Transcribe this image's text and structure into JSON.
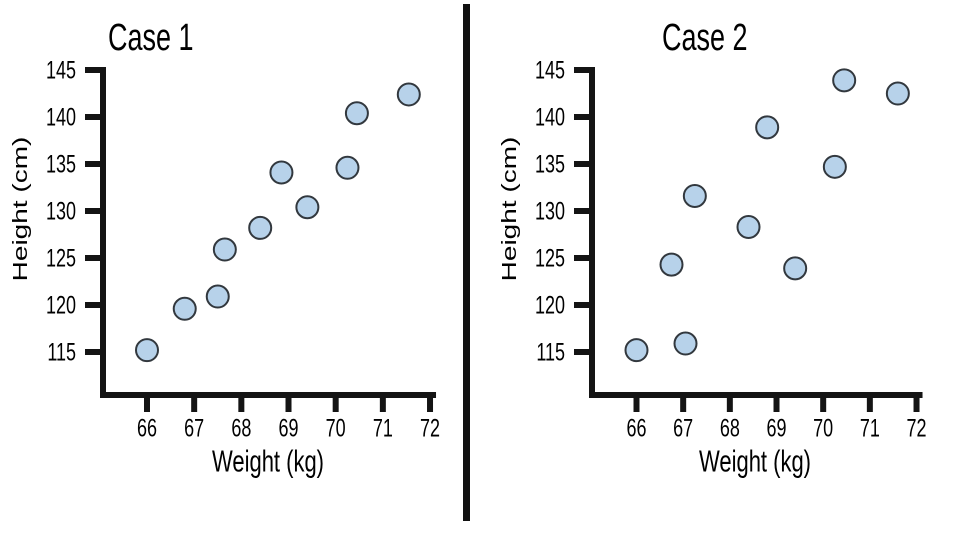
{
  "figure": {
    "background": "#ffffff",
    "description": "Two side-by-side scatter plots of Height vs Weight, separated by a vertical divider"
  },
  "style": {
    "marker_fill": "#b7d2ea",
    "marker_stroke": "#32383e",
    "axis_color": "#141414",
    "divider_color": "#111111",
    "text_color": "#000000"
  },
  "chart_data": [
    {
      "type": "scatter",
      "title": "Case 1",
      "xlabel": "Weight (kg)",
      "ylabel": "Height (cm)",
      "xticks": [
        66,
        67,
        68,
        69,
        70,
        71,
        72
      ],
      "yticks": [
        115,
        120,
        125,
        130,
        135,
        140,
        145
      ],
      "xlim": [
        65.0,
        72.1
      ],
      "ylim": [
        110.0,
        145.3
      ],
      "grid": false,
      "legend_position": "none",
      "points": [
        [
          66.0,
          115.2
        ],
        [
          66.8,
          119.6
        ],
        [
          67.5,
          120.9
        ],
        [
          67.65,
          125.9
        ],
        [
          68.4,
          128.2
        ],
        [
          68.85,
          134.1
        ],
        [
          69.4,
          130.4
        ],
        [
          70.25,
          134.6
        ],
        [
          70.45,
          140.4
        ],
        [
          71.55,
          142.4
        ]
      ]
    },
    {
      "type": "scatter",
      "title": "Case 2",
      "xlabel": "Weight (kg)",
      "ylabel": "Height (cm)",
      "xticks": [
        66,
        67,
        68,
        69,
        70,
        71,
        72
      ],
      "yticks": [
        115,
        120,
        125,
        130,
        135,
        140,
        145
      ],
      "xlim": [
        65.0,
        72.1
      ],
      "ylim": [
        110.0,
        145.3
      ],
      "grid": false,
      "legend_position": "none",
      "points": [
        [
          66.0,
          115.2
        ],
        [
          66.75,
          124.3
        ],
        [
          67.05,
          115.9
        ],
        [
          67.25,
          131.6
        ],
        [
          68.4,
          128.3
        ],
        [
          68.8,
          138.9
        ],
        [
          69.4,
          123.9
        ],
        [
          70.25,
          134.7
        ],
        [
          70.45,
          143.9
        ],
        [
          71.6,
          142.5
        ]
      ]
    }
  ]
}
